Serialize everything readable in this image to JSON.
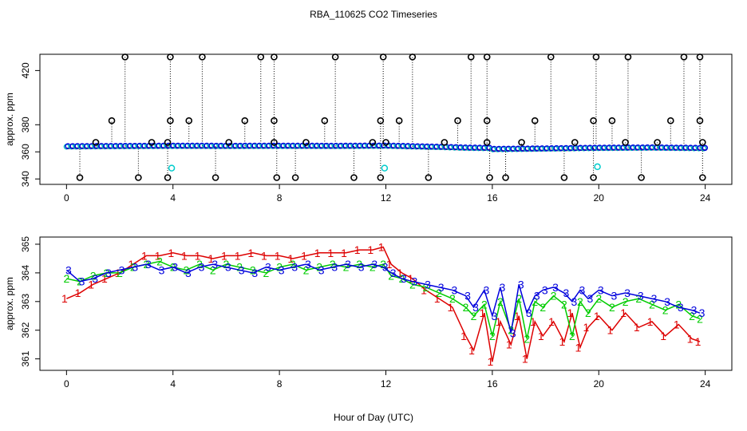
{
  "title": "RBA_110625  CO2 Timeseries",
  "x_label": "Hour of Day (UTC)",
  "chart_data": [
    {
      "type": "scatter",
      "panel": "top",
      "ylabel": "approx. ppm",
      "xlim": [
        -1,
        25
      ],
      "ylim": [
        336,
        432
      ],
      "xticks": [
        0,
        4,
        8,
        12,
        16,
        20,
        24
      ],
      "yticks": [
        340,
        360,
        380,
        420
      ],
      "baseline": {
        "x": [
          0,
          2,
          4,
          6,
          8,
          10,
          12,
          13,
          14,
          15,
          15.9,
          16,
          18,
          20,
          22,
          24
        ],
        "y": [
          363.8,
          364.0,
          364.2,
          364.1,
          364.2,
          364.1,
          364.3,
          363.8,
          363.4,
          362.8,
          362.6,
          361.8,
          362.2,
          362.7,
          362.9,
          362.5
        ]
      },
      "spikes_high": [
        2.2,
        3.9,
        5.1,
        7.3,
        7.8,
        10.1,
        11.9,
        13.0,
        15.2,
        15.8,
        18.2,
        19.9,
        21.1,
        23.2,
        23.8
      ],
      "spikes_mid": [
        1.7,
        3.9,
        4.6,
        6.7,
        7.8,
        9.7,
        11.8,
        12.5,
        14.7,
        15.8,
        17.6,
        19.8,
        20.5,
        22.7,
        23.8
      ],
      "spikes_low": [
        0.5,
        2.7,
        3.8,
        5.6,
        7.9,
        8.6,
        10.8,
        11.8,
        13.6,
        15.9,
        16.5,
        18.7,
        19.8,
        21.6,
        23.9
      ],
      "spikes_small": [
        1.1,
        3.2,
        3.8,
        6.1,
        7.8,
        9.0,
        11.5,
        12.0,
        14.2,
        15.8,
        17.1,
        19.1,
        21.0,
        22.2,
        23.9
      ],
      "cyan_points": [
        [
          3.95,
          348
        ],
        [
          11.95,
          348
        ],
        [
          19.95,
          349
        ]
      ]
    },
    {
      "type": "line",
      "panel": "bottom",
      "ylabel": "approx. ppm",
      "xlim": [
        -1,
        25
      ],
      "ylim": [
        360.6,
        365.25
      ],
      "xticks": [
        0,
        4,
        8,
        12,
        16,
        20,
        24
      ],
      "yticks": [
        361,
        362,
        363,
        364,
        365
      ],
      "series": [
        {
          "name": "1",
          "color": "#dd0000",
          "x": [
            0,
            0.5,
            1,
            1.5,
            2,
            2.5,
            3,
            3.5,
            4,
            4.5,
            5,
            5.5,
            6,
            6.5,
            7,
            7.5,
            8,
            8.5,
            9,
            9.5,
            10,
            10.5,
            11,
            11.5,
            11.9,
            12.2,
            12.6,
            13,
            13.5,
            14,
            14.5,
            15,
            15.3,
            15.7,
            16,
            16.3,
            16.7,
            17,
            17.3,
            17.6,
            17.9,
            18.3,
            18.7,
            19,
            19.3,
            19.6,
            20,
            20.5,
            21,
            21.5,
            22,
            22.5,
            23,
            23.5,
            23.8
          ],
          "y": [
            363.1,
            363.3,
            363.6,
            363.8,
            364.0,
            364.3,
            364.6,
            364.6,
            364.7,
            364.6,
            364.6,
            364.5,
            364.6,
            364.6,
            364.7,
            364.6,
            364.6,
            364.5,
            364.6,
            364.7,
            364.7,
            364.7,
            364.8,
            364.8,
            364.9,
            364.3,
            364.0,
            363.8,
            363.4,
            363.1,
            362.8,
            361.8,
            361.3,
            362.6,
            360.9,
            362.3,
            361.5,
            362.5,
            361.0,
            362.3,
            361.8,
            362.3,
            361.6,
            362.6,
            361.4,
            362.1,
            362.5,
            362.0,
            362.6,
            362.1,
            362.3,
            361.8,
            362.2,
            361.7,
            361.6
          ]
        },
        {
          "name": "2",
          "color": "#00cc00",
          "x": [
            0,
            0.5,
            1,
            1.5,
            2,
            2.5,
            3,
            3.5,
            4,
            4.5,
            5,
            5.5,
            6,
            6.5,
            7,
            7.5,
            8,
            8.5,
            9,
            9.5,
            10,
            10.5,
            11,
            11.5,
            11.9,
            12.2,
            12.6,
            13,
            13.5,
            14,
            14.5,
            15,
            15.3,
            15.7,
            16,
            16.3,
            16.7,
            17,
            17.3,
            17.6,
            17.9,
            18.3,
            18.7,
            19,
            19.3,
            19.6,
            20,
            20.5,
            21,
            21.5,
            22,
            22.5,
            23,
            23.5,
            23.8
          ],
          "y": [
            363.8,
            363.7,
            363.9,
            364.0,
            364.0,
            364.2,
            364.3,
            364.4,
            364.2,
            364.1,
            364.3,
            364.1,
            364.3,
            364.2,
            364.1,
            364.0,
            364.2,
            364.3,
            364.1,
            364.2,
            364.3,
            364.2,
            364.3,
            364.2,
            364.3,
            363.9,
            363.8,
            363.6,
            363.5,
            363.3,
            363.1,
            362.8,
            362.5,
            362.9,
            361.8,
            363.0,
            362.0,
            363.1,
            361.7,
            363.0,
            362.8,
            363.2,
            362.9,
            361.8,
            363.0,
            362.6,
            363.1,
            362.8,
            363.0,
            363.1,
            362.9,
            362.7,
            362.9,
            362.5,
            362.4
          ]
        },
        {
          "name": "3",
          "color": "#0000dd",
          "x": [
            0,
            0.5,
            1,
            1.5,
            2,
            2.5,
            3,
            3.5,
            4,
            4.5,
            5,
            5.5,
            6,
            6.5,
            7,
            7.5,
            8,
            8.5,
            9,
            9.5,
            10,
            10.5,
            11,
            11.5,
            11.9,
            12.2,
            12.6,
            13,
            13.5,
            14,
            14.5,
            15,
            15.3,
            15.7,
            16,
            16.3,
            16.7,
            17,
            17.3,
            17.6,
            17.9,
            18.3,
            18.7,
            19,
            19.3,
            19.6,
            20,
            20.5,
            21,
            21.5,
            22,
            22.5,
            23,
            23.5,
            23.8
          ],
          "y": [
            364.1,
            363.7,
            363.8,
            364.0,
            364.1,
            364.2,
            364.3,
            364.1,
            364.2,
            364.0,
            364.2,
            364.3,
            364.2,
            364.1,
            364.0,
            364.2,
            364.1,
            364.2,
            364.3,
            364.1,
            364.2,
            364.3,
            364.2,
            364.3,
            364.2,
            364.0,
            363.8,
            363.7,
            363.6,
            363.5,
            363.4,
            363.2,
            362.8,
            363.4,
            362.5,
            363.5,
            361.9,
            363.6,
            362.6,
            363.2,
            363.4,
            363.5,
            363.3,
            363.0,
            363.4,
            363.1,
            363.4,
            363.2,
            363.3,
            363.2,
            363.1,
            363.0,
            362.8,
            362.7,
            362.6
          ]
        }
      ]
    }
  ]
}
